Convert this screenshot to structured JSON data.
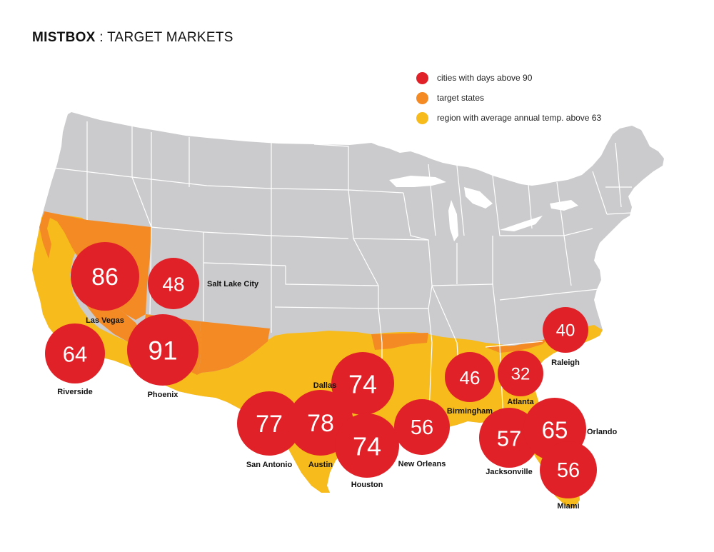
{
  "title": {
    "brand": "MISTBOX",
    "rest": " : TARGET MARKETS"
  },
  "colors": {
    "land": "#cbcbcd",
    "border": "#ffffff",
    "temp_region": "#f7bb1c",
    "target_state": "#f38a24",
    "city": "#e02128"
  },
  "legend": [
    {
      "label": "cities with days above 90",
      "color": "#e02128"
    },
    {
      "label": "target states",
      "color": "#f38a24"
    },
    {
      "label": "region with average annual temp. above 63",
      "color": "#f7bb1c"
    }
  ],
  "cities": [
    {
      "name": "Las Vegas",
      "days_above_90": "86"
    },
    {
      "name": "Salt Lake City",
      "days_above_90": "48"
    },
    {
      "name": "Riverside",
      "days_above_90": "64"
    },
    {
      "name": "Phoenix",
      "days_above_90": "91"
    },
    {
      "name": "Dallas",
      "days_above_90": "74"
    },
    {
      "name": "San Antonio",
      "days_above_90": "77"
    },
    {
      "name": "Austin",
      "days_above_90": "78"
    },
    {
      "name": "Houston",
      "days_above_90": "74"
    },
    {
      "name": "New Orleans",
      "days_above_90": "56"
    },
    {
      "name": "Birmingham",
      "days_above_90": "46"
    },
    {
      "name": "Atlanta",
      "days_above_90": "32"
    },
    {
      "name": "Raleigh",
      "days_above_90": "40"
    },
    {
      "name": "Jacksonville",
      "days_above_90": "57"
    },
    {
      "name": "Orlando",
      "days_above_90": "65"
    },
    {
      "name": "Miami",
      "days_above_90": "56"
    }
  ]
}
